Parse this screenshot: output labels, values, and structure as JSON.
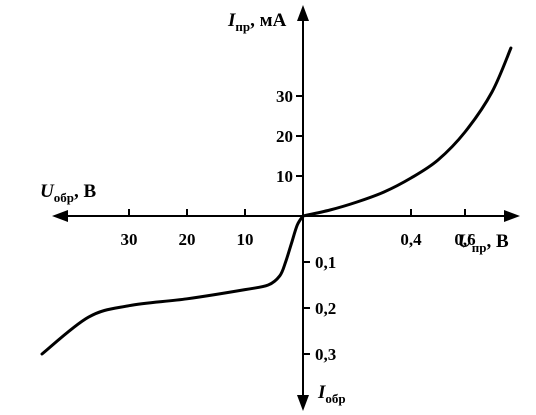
{
  "chart_data": {
    "type": "line",
    "title": "",
    "axes": {
      "forward_current": {
        "symbol": "I",
        "subscript": "пр",
        "unit": ", мА",
        "ticks": [
          "10",
          "20",
          "30"
        ],
        "values": [
          10,
          20,
          30
        ]
      },
      "forward_voltage": {
        "symbol": "U",
        "subscript": "пр",
        "unit": ", В",
        "ticks": [
          "0,4",
          "0,6"
        ],
        "values": [
          0.4,
          0.6
        ]
      },
      "reverse_voltage": {
        "symbol": "U",
        "subscript": "обр",
        "unit": ", В",
        "ticks": [
          "10",
          "20",
          "30"
        ],
        "values": [
          10,
          20,
          30
        ]
      },
      "reverse_current": {
        "symbol": "I",
        "subscript": "обр",
        "unit": "",
        "ticks": [
          "0,1",
          "0,2",
          "0,3"
        ],
        "values": [
          0.1,
          0.2,
          0.3
        ]
      }
    },
    "forward_branch": {
      "x_label": "U, В",
      "y_label": "I, мА",
      "points": [
        [
          0,
          0
        ],
        [
          0.1,
          1.5
        ],
        [
          0.2,
          3.5
        ],
        [
          0.3,
          6
        ],
        [
          0.4,
          9.5
        ],
        [
          0.5,
          14
        ],
        [
          0.6,
          21
        ],
        [
          0.7,
          31
        ],
        [
          0.77,
          42
        ]
      ]
    },
    "reverse_branch": {
      "x_label": "U, В",
      "y_label": "I, мА",
      "points": [
        [
          0,
          0
        ],
        [
          1,
          -0.02
        ],
        [
          2,
          -0.06
        ],
        [
          3,
          -0.1
        ],
        [
          4,
          -0.13
        ],
        [
          6,
          -0.15
        ],
        [
          10,
          -0.16
        ],
        [
          20,
          -0.18
        ],
        [
          30,
          -0.195
        ],
        [
          37,
          -0.22
        ],
        [
          45,
          -0.3
        ]
      ]
    },
    "grid": false,
    "legend": "none"
  },
  "colors": {
    "curve": "#000000",
    "axes": "#000000",
    "background": "#ffffff"
  }
}
